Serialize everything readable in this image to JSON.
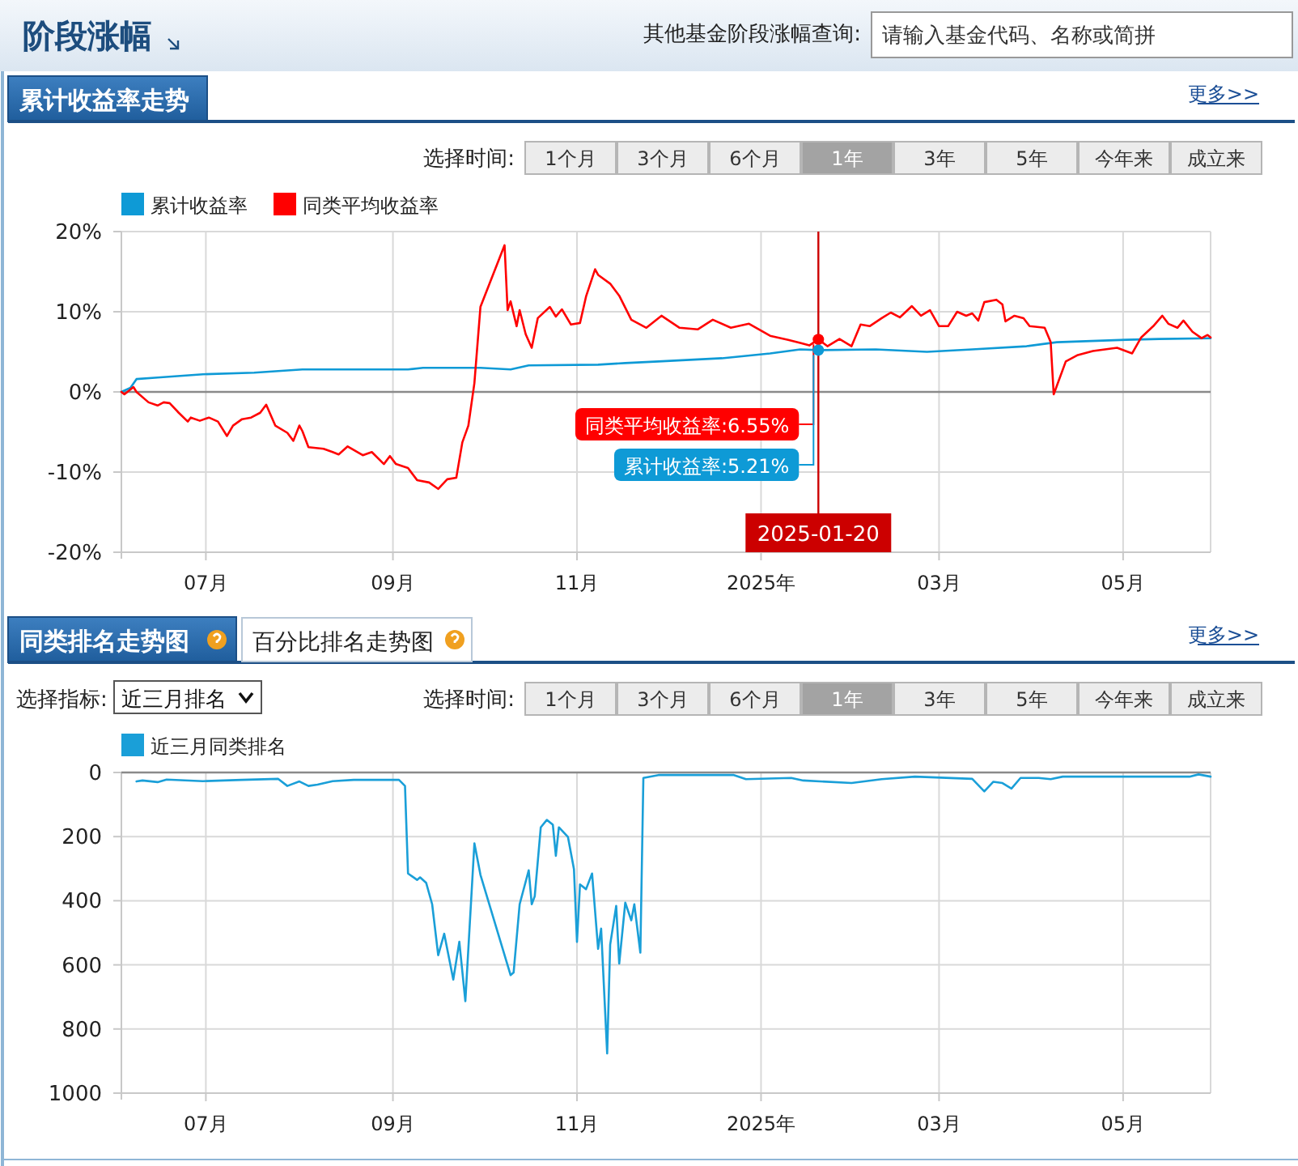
{
  "chart_data": [
    {
      "type": "line",
      "title": "累计收益率走势",
      "annotations": [
        "阶段涨幅",
        "其他基金阶段涨幅查询:",
        "请输入基金代码、名称或简拼",
        "更多>>",
        "选择时间:",
        "1个月",
        "3个月",
        "6个月",
        "1年",
        "3年",
        "5年",
        "今年来",
        "成立来",
        {
          "text": "同类平均收益率:6.55%",
          "x": "2025-01-20",
          "y": 6.55
        },
        {
          "text": "累计收益率:5.21%",
          "x": "2025-01-20",
          "y": 5.21
        }
      ],
      "xlim": [
        "2024-06-03",
        "2025-05-30"
      ],
      "xticks": [
        {
          "value": "2024-07-01",
          "label": "07月"
        },
        {
          "value": "2024-09-01",
          "label": "09月"
        },
        {
          "value": "2024-11-01",
          "label": "11月"
        },
        {
          "value": "2025-01-01",
          "label": "2025年"
        },
        {
          "value": "2025-03-01",
          "label": "03月"
        },
        {
          "value": "2025-05-01",
          "label": "05月"
        }
      ],
      "ylim": [
        -20,
        20
      ],
      "yticks": [
        {
          "value": -20,
          "label": "-20%"
        },
        {
          "value": -10,
          "label": "-10%"
        },
        {
          "value": 0,
          "label": "0%"
        },
        {
          "value": 10,
          "label": "10%"
        },
        {
          "value": 20,
          "label": "20%"
        }
      ],
      "grid": true,
      "legend": "top left",
      "ref_lines": [
        {
          "axis": "x",
          "value": "2025-01-20",
          "label": "2025-01-20",
          "color": "#cc0000"
        }
      ],
      "series": [
        {
          "name": "累计收益率",
          "color": "#0e9ad6",
          "x": [
            "2024-06-03",
            "2024-06-06",
            "2024-06-08",
            "2024-06-15",
            "2024-06-30",
            "2024-07-17",
            "2024-08-02",
            "2024-08-19",
            "2024-09-06",
            "2024-09-11",
            "2024-09-30",
            "2024-10-10",
            "2024-10-16",
            "2024-11-08",
            "2024-11-17",
            "2024-11-28",
            "2024-12-19",
            "2025-01-04",
            "2025-01-14",
            "2025-01-20",
            "2025-02-08",
            "2025-02-25",
            "2025-03-12",
            "2025-03-30",
            "2025-04-09",
            "2025-05-02",
            "2025-05-13",
            "2025-05-30"
          ],
          "values": [
            0,
            0.5,
            1.6,
            1.8,
            2.2,
            2.4,
            2.8,
            2.8,
            2.8,
            3.0,
            3.0,
            2.8,
            3.3,
            3.4,
            3.6,
            3.8,
            4.2,
            4.8,
            5.3,
            5.21,
            5.3,
            5.0,
            5.3,
            5.7,
            6.2,
            6.5,
            6.6,
            6.7
          ]
        },
        {
          "name": "同类平均收益率",
          "color": "#ff0000",
          "x": [
            "2024-06-03",
            "2024-06-04",
            "2024-06-07",
            "2024-06-08",
            "2024-06-12",
            "2024-06-15",
            "2024-06-17",
            "2024-06-19",
            "2024-06-22",
            "2024-06-25",
            "2024-06-26",
            "2024-06-29",
            "2024-07-02",
            "2024-07-05",
            "2024-07-08",
            "2024-07-10",
            "2024-07-13",
            "2024-07-16",
            "2024-07-19",
            "2024-07-21",
            "2024-07-24",
            "2024-07-28",
            "2024-07-30",
            "2024-08-01",
            "2024-08-02",
            "2024-08-04",
            "2024-08-09",
            "2024-08-12",
            "2024-08-14",
            "2024-08-17",
            "2024-08-22",
            "2024-08-25",
            "2024-08-29",
            "2024-08-31",
            "2024-09-02",
            "2024-09-06",
            "2024-09-09",
            "2024-09-13",
            "2024-09-16",
            "2024-09-19",
            "2024-09-22",
            "2024-09-24",
            "2024-09-26",
            "2024-09-28",
            "2024-09-30",
            "2024-10-08",
            "2024-10-09",
            "2024-10-10",
            "2024-10-12",
            "2024-10-13",
            "2024-10-15",
            "2024-10-17",
            "2024-10-19",
            "2024-10-23",
            "2024-10-25",
            "2024-10-27",
            "2024-10-30",
            "2024-11-02",
            "2024-11-04",
            "2024-11-07",
            "2024-11-08",
            "2024-11-12",
            "2024-11-15",
            "2024-11-19",
            "2024-11-24",
            "2024-11-29",
            "2024-12-05",
            "2024-12-11",
            "2024-12-16",
            "2024-12-22",
            "2024-12-28",
            "2025-01-04",
            "2025-01-10",
            "2025-01-14",
            "2025-01-17",
            "2025-01-20",
            "2025-01-23",
            "2025-01-27",
            "2025-01-31",
            "2025-02-03",
            "2025-02-06",
            "2025-02-10",
            "2025-02-13",
            "2025-02-16",
            "2025-02-20",
            "2025-02-23",
            "2025-02-26",
            "2025-03-01",
            "2025-03-04",
            "2025-03-07",
            "2025-03-10",
            "2025-03-12",
            "2025-03-14",
            "2025-03-16",
            "2025-03-20",
            "2025-03-22",
            "2025-03-23",
            "2025-03-26",
            "2025-03-29",
            "2025-03-31",
            "2025-04-05",
            "2025-04-07",
            "2025-04-08",
            "2025-04-12",
            "2025-04-16",
            "2025-04-21",
            "2025-04-29",
            "2025-05-04",
            "2025-05-07",
            "2025-05-11",
            "2025-05-14",
            "2025-05-16",
            "2025-05-19",
            "2025-05-21",
            "2025-05-24",
            "2025-05-27",
            "2025-05-29",
            "2025-05-30"
          ],
          "values": [
            0,
            -0.3,
            0.6,
            0,
            -1.3,
            -1.7,
            -1.3,
            -1.4,
            -2.6,
            -3.7,
            -3.2,
            -3.6,
            -3.2,
            -3.7,
            -5.5,
            -4.2,
            -3.4,
            -3.2,
            -2.6,
            -1.6,
            -4.2,
            -5.1,
            -6.1,
            -4.2,
            -4.9,
            -6.9,
            -7.1,
            -7.5,
            -7.8,
            -6.8,
            -7.9,
            -7.5,
            -9.0,
            -8.0,
            -9.0,
            -9.5,
            -11.0,
            -11.3,
            -12.1,
            -10.9,
            -10.7,
            -6.3,
            -4.2,
            1.1,
            10.6,
            18.3,
            10.2,
            11.3,
            8.2,
            10.2,
            7.2,
            5.5,
            9.2,
            10.6,
            9.4,
            10.3,
            8.4,
            8.6,
            11.9,
            15.3,
            14.6,
            13.5,
            12,
            9,
            8,
            9.5,
            8,
            7.8,
            9,
            8,
            8.5,
            7,
            6.5,
            6.1,
            5.8,
            6.55,
            5.7,
            6.6,
            5.7,
            8.4,
            8.2,
            9.2,
            9.9,
            9.3,
            10.7,
            9.5,
            10.2,
            8.2,
            8.2,
            10.0,
            9.5,
            9.8,
            8.9,
            11.2,
            11.5,
            10.9,
            8.8,
            9.5,
            9.2,
            8.2,
            8.0,
            6.2,
            -0.3,
            3.8,
            4.6,
            5.1,
            5.5,
            4.8,
            6.8,
            8.2,
            9.5,
            8.5,
            8.0,
            8.9,
            7.5,
            6.7,
            7.1,
            6.8
          ]
        }
      ]
    },
    {
      "type": "line",
      "title": "同类排名走势图",
      "annotations": [
        "百分比排名走势图",
        "更多>>",
        "选择指标:",
        "近三月排名",
        "选择时间:",
        "1个月",
        "3个月",
        "6个月",
        "1年",
        "3年",
        "5年",
        "今年来",
        "成立来"
      ],
      "xlim": [
        "2024-06-03",
        "2025-05-30"
      ],
      "xticks": [
        {
          "value": "2024-07-01",
          "label": "07月"
        },
        {
          "value": "2024-09-01",
          "label": "09月"
        },
        {
          "value": "2024-11-01",
          "label": "11月"
        },
        {
          "value": "2025-01-01",
          "label": "2025年"
        },
        {
          "value": "2025-03-01",
          "label": "03月"
        },
        {
          "value": "2025-05-01",
          "label": "05月"
        }
      ],
      "ylim": [
        1000,
        0
      ],
      "yticks": [
        0,
        200,
        400,
        600,
        800,
        1000
      ],
      "grid": true,
      "legend": "top left",
      "series": [
        {
          "name": "近三月同类排名",
          "color": "#1a9fd8",
          "x": [
            "2024-06-08",
            "2024-06-10",
            "2024-06-15",
            "2024-06-18",
            "2024-06-30",
            "2024-07-13",
            "2024-07-25",
            "2024-07-28",
            "2024-08-01",
            "2024-08-04",
            "2024-08-07",
            "2024-08-12",
            "2024-08-19",
            "2024-09-03",
            "2024-09-05",
            "2024-09-06",
            "2024-09-09",
            "2024-09-10",
            "2024-09-12",
            "2024-09-14",
            "2024-09-16",
            "2024-09-18",
            "2024-09-21",
            "2024-09-23",
            "2024-09-25",
            "2024-09-28",
            "2024-09-30",
            "2024-10-10",
            "2024-10-11",
            "2024-10-13",
            "2024-10-16",
            "2024-10-17",
            "2024-10-18",
            "2024-10-20",
            "2024-10-22",
            "2024-10-24",
            "2024-10-25",
            "2024-10-26",
            "2024-10-29",
            "2024-10-31",
            "2024-11-01",
            "2024-11-02",
            "2024-11-04",
            "2024-11-06",
            "2024-11-08",
            "2024-11-09",
            "2024-11-11",
            "2024-11-12",
            "2024-11-14",
            "2024-11-15",
            "2024-11-17",
            "2024-11-19",
            "2024-11-20",
            "2024-11-22",
            "2024-11-23",
            "2024-11-28",
            "2024-12-23",
            "2024-12-27",
            "2025-01-11",
            "2025-01-15",
            "2025-01-31",
            "2025-02-10",
            "2025-02-21",
            "2025-03-12",
            "2025-03-16",
            "2025-03-19",
            "2025-03-22",
            "2025-03-25",
            "2025-03-28",
            "2025-04-03",
            "2025-04-07",
            "2025-04-11",
            "2025-05-23",
            "2025-05-26",
            "2025-05-30"
          ],
          "values": [
            28,
            25,
            30,
            22,
            27,
            23,
            20,
            42,
            28,
            42,
            38,
            27,
            23,
            23,
            42,
            315,
            335,
            327,
            344,
            411,
            570,
            503,
            646,
            528,
            713,
            221,
            319,
            632,
            624,
            411,
            305,
            411,
            386,
            171,
            148,
            163,
            260,
            171,
            201,
            302,
            528,
            349,
            364,
            315,
            550,
            487,
            876,
            537,
            416,
            596,
            406,
            461,
            411,
            562,
            17,
            8,
            8,
            21,
            17,
            25,
            33,
            21,
            13,
            20,
            59,
            29,
            33,
            50,
            17,
            17,
            21,
            13,
            13,
            6,
            13
          ]
        }
      ]
    }
  ]
}
